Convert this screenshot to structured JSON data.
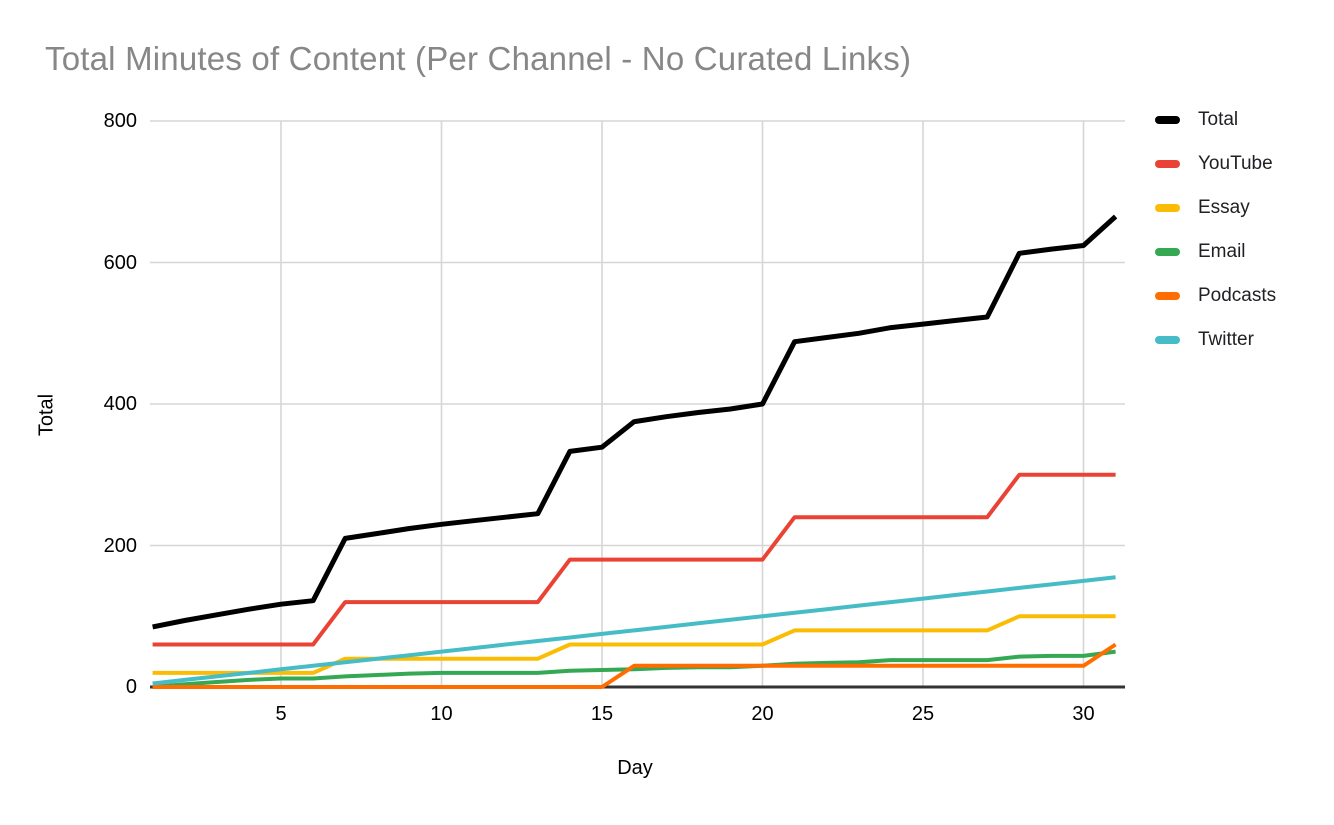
{
  "title": "Total Minutes of Content (Per Channel - No Curated Links)",
  "colors": {
    "title_text": "#878787",
    "gridline": "#d6d6d6",
    "baseline": "#333333",
    "tick_text": "#000000",
    "background": "#ffffff"
  },
  "chart_data": {
    "type": "line",
    "title": "Total Minutes of Content (Per Channel - No Curated Links)",
    "xlabel": "Day",
    "ylabel": "Total",
    "xlim": [
      1,
      31
    ],
    "ylim": [
      0,
      800
    ],
    "x_ticks": [
      5,
      10,
      15,
      20,
      25,
      30
    ],
    "y_ticks": [
      0,
      200,
      400,
      600,
      800
    ],
    "grid": true,
    "legend_position": "right",
    "x": [
      1,
      2,
      3,
      4,
      5,
      6,
      7,
      8,
      9,
      10,
      11,
      12,
      13,
      14,
      15,
      16,
      17,
      18,
      19,
      20,
      21,
      22,
      23,
      24,
      25,
      26,
      27,
      28,
      29,
      30,
      31
    ],
    "series": [
      {
        "name": "Total",
        "color": "#000000",
        "values": [
          85,
          94,
          102,
          110,
          117,
          122,
          210,
          217,
          224,
          230,
          235,
          240,
          245,
          333,
          339,
          375,
          382,
          388,
          393,
          400,
          488,
          494,
          500,
          508,
          513,
          518,
          523,
          613,
          619,
          624,
          665
        ]
      },
      {
        "name": "YouTube",
        "color": "#ea4335",
        "values": [
          60,
          60,
          60,
          60,
          60,
          60,
          120,
          120,
          120,
          120,
          120,
          120,
          120,
          180,
          180,
          180,
          180,
          180,
          180,
          180,
          240,
          240,
          240,
          240,
          240,
          240,
          240,
          300,
          300,
          300,
          300
        ]
      },
      {
        "name": "Essay",
        "color": "#fbbc04",
        "values": [
          20,
          20,
          20,
          20,
          20,
          20,
          40,
          40,
          40,
          40,
          40,
          40,
          40,
          60,
          60,
          60,
          60,
          60,
          60,
          60,
          80,
          80,
          80,
          80,
          80,
          80,
          80,
          100,
          100,
          100,
          100
        ]
      },
      {
        "name": "Email",
        "color": "#34a853",
        "values": [
          0,
          4,
          7,
          10,
          12,
          12,
          15,
          17,
          19,
          20,
          20,
          20,
          20,
          23,
          24,
          25,
          27,
          28,
          28,
          30,
          33,
          34,
          35,
          38,
          38,
          38,
          38,
          43,
          44,
          44,
          50
        ]
      },
      {
        "name": "Podcasts",
        "color": "#ff6d01",
        "values": [
          0,
          0,
          0,
          0,
          0,
          0,
          0,
          0,
          0,
          0,
          0,
          0,
          0,
          0,
          0,
          30,
          30,
          30,
          30,
          30,
          30,
          30,
          30,
          30,
          30,
          30,
          30,
          30,
          30,
          30,
          60
        ]
      },
      {
        "name": "Twitter",
        "color": "#46bdc6",
        "values": [
          5,
          10,
          15,
          20,
          25,
          30,
          35,
          40,
          45,
          50,
          55,
          60,
          65,
          70,
          75,
          80,
          85,
          90,
          95,
          100,
          105,
          110,
          115,
          120,
          125,
          130,
          135,
          140,
          145,
          150,
          155
        ]
      }
    ]
  }
}
